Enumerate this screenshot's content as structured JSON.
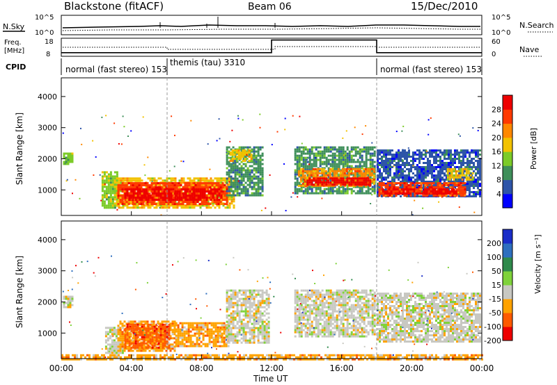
{
  "header": {
    "station": "Blackstone (fitACF)",
    "beam": "Beam 06",
    "date": "15/Dec/2010"
  },
  "aux_panels": {
    "nsky_label": "N.Sky",
    "nsky_ticks": [
      "10^5",
      "10^0"
    ],
    "nsearch_label": "N.Search",
    "nsearch_ticks": [
      "10^5",
      "10^0"
    ],
    "freq_label_1": "Freq.",
    "freq_label_2": "[MHz]",
    "freq_ticks": [
      "18",
      "8"
    ],
    "nave_label": "Nave",
    "nave_ticks": [
      "60",
      "0"
    ],
    "cpid_label": "CPID",
    "modes": [
      {
        "text": "normal (fast stereo) 153",
        "start_h": 0
      },
      {
        "text": "themis (tau) 3310",
        "start_h": 6
      },
      {
        "text": "normal (fast stereo) 153",
        "start_h": 18
      }
    ],
    "freq_series": [
      {
        "h": 0,
        "mhz": 10
      },
      {
        "h": 12,
        "mhz": 10
      },
      {
        "h": 12,
        "mhz": 17
      },
      {
        "h": 18,
        "mhz": 17
      },
      {
        "h": 18,
        "mhz": 10
      },
      {
        "h": 24,
        "mhz": 10
      }
    ]
  },
  "chart_data": [
    {
      "type": "heatmap",
      "title": "Power",
      "ylabel": "Slant Range [km]",
      "xlabel": "Time UT",
      "ylim": [
        180,
        4600
      ],
      "xlim": [
        0,
        24
      ],
      "yticks": [
        "1000",
        "2000",
        "3000",
        "4000"
      ],
      "colorbar": {
        "label": "Power [dB]",
        "ticks": [
          "4",
          "8",
          "12",
          "16",
          "20",
          "24",
          "28"
        ],
        "colors": [
          "#0000ff",
          "#2e55a8",
          "#3f8f5a",
          "#7ccb28",
          "#f2c200",
          "#ff8800",
          "#ff3a00",
          "#ee0000"
        ]
      },
      "regions": [
        {
          "t0": 0.1,
          "t1": 0.6,
          "r0": 1800,
          "r1": 2200,
          "level": 3
        },
        {
          "t0": 2.3,
          "t1": 3.2,
          "r0": 400,
          "r1": 1600,
          "level": 3
        },
        {
          "t0": 3.0,
          "t1": 9.8,
          "r0": 400,
          "r1": 1400,
          "level": 4
        },
        {
          "t0": 3.2,
          "t1": 9.5,
          "r0": 550,
          "r1": 1250,
          "level": 6
        },
        {
          "t0": 3.6,
          "t1": 9.2,
          "r0": 650,
          "r1": 1050,
          "level": 7
        },
        {
          "t0": 9.4,
          "t1": 11.5,
          "r0": 800,
          "r1": 2400,
          "level": 2
        },
        {
          "t0": 9.6,
          "t1": 10.8,
          "r0": 1900,
          "r1": 2300,
          "level": 4
        },
        {
          "t0": 13.3,
          "t1": 17.9,
          "r0": 900,
          "r1": 2400,
          "level": 2
        },
        {
          "t0": 13.5,
          "t1": 17.8,
          "r0": 1100,
          "r1": 1700,
          "level": 5
        },
        {
          "t0": 14.0,
          "t1": 17.6,
          "r0": 1150,
          "r1": 1400,
          "level": 7
        },
        {
          "t0": 18.0,
          "t1": 23.9,
          "r0": 800,
          "r1": 2300,
          "level": 1
        },
        {
          "t0": 18.1,
          "t1": 23.0,
          "r0": 800,
          "r1": 1250,
          "level": 6
        },
        {
          "t0": 18.3,
          "t1": 22.5,
          "r0": 850,
          "r1": 1050,
          "level": 7
        },
        {
          "t0": 22.0,
          "t1": 23.5,
          "r0": 1300,
          "r1": 1700,
          "level": 4
        }
      ]
    },
    {
      "type": "heatmap",
      "title": "Velocity",
      "ylabel": "Slant Range [km]",
      "xlabel": "Time UT",
      "ylim": [
        180,
        4600
      ],
      "xlim": [
        0,
        24
      ],
      "yticks": [
        "1000",
        "2000",
        "3000",
        "4000"
      ],
      "colorbar": {
        "label": "Velocity [m s⁻¹]",
        "ticks": [
          "200",
          "100",
          "50",
          "15",
          "-15",
          "-50",
          "-100",
          "-200"
        ],
        "colors": [
          "#1a2dc8",
          "#2e6fbf",
          "#2f8a4c",
          "#7fd23a",
          "#c8c8c2",
          "#ffa200",
          "#ff5a00",
          "#ee0000"
        ]
      },
      "regions": [
        {
          "t0": 0.1,
          "t1": 0.6,
          "r0": 1800,
          "r1": 2200,
          "level": 4
        },
        {
          "t0": 2.5,
          "t1": 3.5,
          "r0": 350,
          "r1": 1200,
          "level": 4
        },
        {
          "t0": 3.2,
          "t1": 6.5,
          "r0": 400,
          "r1": 1400,
          "level": 5
        },
        {
          "t0": 3.6,
          "t1": 6.2,
          "r0": 500,
          "r1": 1300,
          "level": 6
        },
        {
          "t0": 6.5,
          "t1": 9.5,
          "r0": 550,
          "r1": 1350,
          "level": 5
        },
        {
          "t0": 9.4,
          "t1": 11.8,
          "r0": 700,
          "r1": 2400,
          "level": 4
        },
        {
          "t0": 13.3,
          "t1": 17.9,
          "r0": 900,
          "r1": 2400,
          "level": 4
        },
        {
          "t0": 18.0,
          "t1": 23.9,
          "r0": 750,
          "r1": 2300,
          "level": 4
        },
        {
          "t0": 0.0,
          "t1": 24.0,
          "r0": 180,
          "r1": 320,
          "level": 5
        }
      ]
    }
  ],
  "xaxis": {
    "ticks": [
      "00:00",
      "04:00",
      "08:00",
      "12:00",
      "16:00",
      "20:00",
      "00:00"
    ],
    "label": "Time UT"
  }
}
